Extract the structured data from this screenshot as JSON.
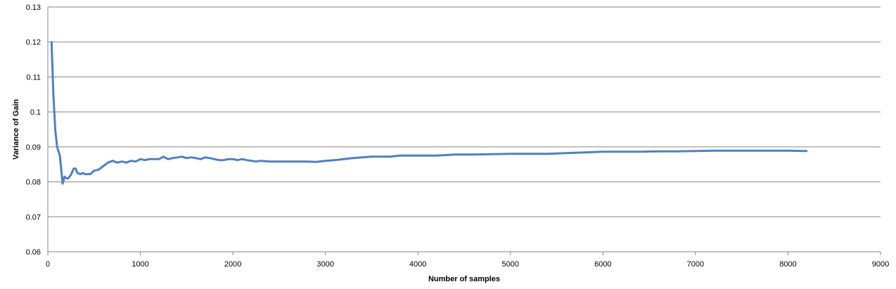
{
  "chart_data": {
    "type": "line",
    "title": "",
    "xlabel": "Number of samples",
    "ylabel": "Variance of Gain",
    "xlim": [
      0,
      9000
    ],
    "ylim": [
      0.06,
      0.13
    ],
    "x_ticks": [
      0,
      1000,
      2000,
      3000,
      4000,
      5000,
      6000,
      7000,
      8000,
      9000
    ],
    "y_ticks": [
      "0.06",
      "0.07",
      "0.08",
      "0.09",
      "0.1",
      "0.11",
      "0.12",
      "0.13"
    ],
    "grid": "horizontal",
    "legend": "none",
    "series": [
      {
        "color": "#4F81BD",
        "x": [
          40,
          60,
          80,
          100,
          130,
          160,
          180,
          200,
          220,
          250,
          280,
          300,
          320,
          350,
          380,
          400,
          430,
          460,
          500,
          550,
          600,
          650,
          700,
          750,
          800,
          850,
          900,
          950,
          1000,
          1050,
          1100,
          1150,
          1200,
          1250,
          1300,
          1350,
          1400,
          1450,
          1500,
          1550,
          1600,
          1650,
          1700,
          1750,
          1800,
          1850,
          1900,
          1950,
          2000,
          2050,
          2100,
          2150,
          2200,
          2250,
          2300,
          2400,
          2500,
          2600,
          2700,
          2800,
          2900,
          3000,
          3100,
          3200,
          3300,
          3400,
          3500,
          3600,
          3700,
          3800,
          3900,
          4000,
          4100,
          4200,
          4400,
          4600,
          4800,
          5000,
          5200,
          5400,
          5600,
          5800,
          6000,
          6200,
          6400,
          6600,
          6800,
          7000,
          7200,
          7400,
          7600,
          7800,
          8000,
          8200
        ],
        "y": [
          0.12,
          0.105,
          0.095,
          0.09,
          0.0875,
          0.0795,
          0.0815,
          0.081,
          0.081,
          0.082,
          0.0838,
          0.0838,
          0.0825,
          0.0822,
          0.0825,
          0.0822,
          0.0822,
          0.0822,
          0.0832,
          0.0835,
          0.0845,
          0.0855,
          0.086,
          0.0855,
          0.0858,
          0.0855,
          0.086,
          0.0858,
          0.0865,
          0.0862,
          0.0865,
          0.0865,
          0.0865,
          0.0872,
          0.0865,
          0.0868,
          0.087,
          0.0872,
          0.0868,
          0.087,
          0.0868,
          0.0865,
          0.087,
          0.0868,
          0.0865,
          0.0862,
          0.0862,
          0.0865,
          0.0865,
          0.0862,
          0.0865,
          0.0862,
          0.086,
          0.0858,
          0.086,
          0.0858,
          0.0858,
          0.0858,
          0.0858,
          0.0858,
          0.0857,
          0.086,
          0.0862,
          0.0865,
          0.0868,
          0.087,
          0.0872,
          0.0872,
          0.0872,
          0.0875,
          0.0875,
          0.0875,
          0.0875,
          0.0875,
          0.0878,
          0.0878,
          0.0879,
          0.088,
          0.088,
          0.088,
          0.0882,
          0.0884,
          0.0886,
          0.0886,
          0.0886,
          0.0887,
          0.0887,
          0.0888,
          0.0889,
          0.0889,
          0.0889,
          0.0889,
          0.0889,
          0.0888
        ]
      }
    ]
  }
}
